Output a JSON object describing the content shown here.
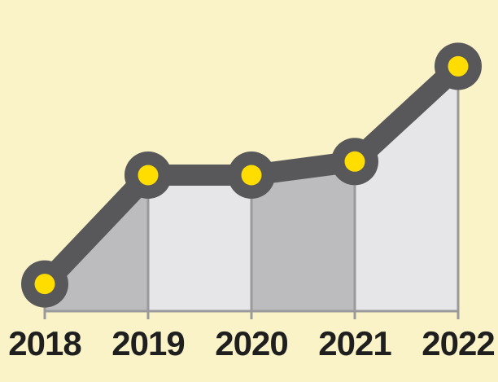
{
  "chart_data": {
    "type": "area",
    "title": "",
    "xlabel": "",
    "ylabel": "",
    "categories": [
      "2018",
      "2019",
      "2020",
      "2021",
      "2022"
    ],
    "series": [
      {
        "values": [
          10,
          50,
          50,
          55,
          90
        ]
      }
    ],
    "ylim": [
      0,
      100
    ],
    "grid": false,
    "legend": "none",
    "colors": {
      "background": "#faf3c8",
      "line": "#58585a",
      "marker_fill": "#ffdd00",
      "area_dark": "#bcbcbe",
      "area_light": "#e6e6e8",
      "divider": "#9a9a9c",
      "tick_text": "#1f1f1f"
    }
  }
}
